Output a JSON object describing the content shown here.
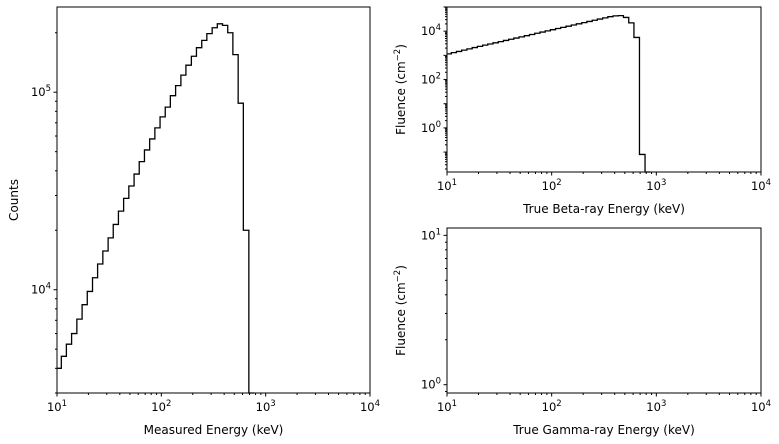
{
  "chart_data": [
    {
      "type": "line",
      "xlabel": "Measured Energy (keV)",
      "ylabel": "Counts",
      "xscale": "log",
      "yscale": "log",
      "xlim": [
        10,
        10000
      ],
      "ylim": [
        3000,
        270000
      ],
      "x_ticks": [
        {
          "v": 10,
          "base": "10",
          "exp": "1"
        },
        {
          "v": 100,
          "base": "10",
          "exp": "2"
        },
        {
          "v": 1000,
          "base": "10",
          "exp": "3"
        },
        {
          "v": 10000,
          "base": "10",
          "exp": "4"
        }
      ],
      "y_ticks": [
        {
          "v": 10000,
          "base": "10",
          "exp": "4"
        },
        {
          "v": 100000,
          "base": "10",
          "exp": "5"
        }
      ],
      "series": [
        {
          "x": [
            10,
            11,
            12.3,
            13.8,
            15.5,
            17.4,
            19.5,
            21.9,
            24.5,
            27.5,
            30.9,
            34.6,
            38.8,
            43.5,
            48.8,
            54.8,
            61.4,
            68.9,
            77.3,
            86.7,
            97.2,
            109,
            122,
            137,
            154,
            172,
            194,
            217,
            244,
            273,
            307,
            344,
            386,
            433,
            485,
            545,
            611,
            690
          ],
          "y": [
            4000,
            4600,
            5300,
            6000,
            7100,
            8400,
            9800,
            11500,
            13500,
            15700,
            18300,
            21400,
            25000,
            29000,
            33500,
            38500,
            44500,
            51000,
            58000,
            66000,
            75000,
            84000,
            96000,
            108000,
            122000,
            137000,
            152000,
            168000,
            183000,
            198000,
            212000,
            222000,
            218000,
            200000,
            155000,
            88000,
            20000,
            3000
          ]
        }
      ]
    },
    {
      "type": "line",
      "xlabel": "True Beta-ray Energy (keV)",
      "ylabel": "Fluence (cm<sup>-2</sup>)",
      "ylabel_main": "Fluence (cm",
      "ylabel_sup": "−2",
      "ylabel_end": ")",
      "xscale": "log",
      "yscale": "log",
      "xlim": [
        10,
        10000
      ],
      "ylim": [
        0.015,
        100000
      ],
      "x_ticks": [
        {
          "v": 10,
          "base": "10",
          "exp": "1"
        },
        {
          "v": 100,
          "base": "10",
          "exp": "2"
        },
        {
          "v": 1000,
          "base": "10",
          "exp": "3"
        },
        {
          "v": 10000,
          "base": "10",
          "exp": "4"
        }
      ],
      "y_ticks": [
        {
          "v": 1,
          "base": "10",
          "exp": "0"
        },
        {
          "v": 100,
          "base": "10",
          "exp": "2"
        },
        {
          "v": 10000,
          "base": "10",
          "exp": "4"
        }
      ],
      "series": [
        {
          "x": [
            10,
            11,
            12.3,
            13.8,
            15.5,
            17.4,
            19.5,
            21.9,
            24.5,
            27.5,
            30.9,
            34.6,
            38.8,
            43.5,
            48.8,
            54.8,
            61.4,
            68.9,
            77.3,
            86.7,
            97.2,
            109,
            122,
            137,
            154,
            172,
            194,
            217,
            244,
            273,
            307,
            344,
            386,
            433,
            485,
            545,
            611,
            690,
            780
          ],
          "y": [
            1150,
            1300,
            1450,
            1650,
            1850,
            2100,
            2350,
            2650,
            2950,
            3300,
            3700,
            4150,
            4650,
            5200,
            5800,
            6500,
            7300,
            8200,
            9200,
            10300,
            11500,
            12900,
            14400,
            16100,
            18000,
            20200,
            22600,
            25300,
            28300,
            31700,
            35500,
            39700,
            43000,
            44000,
            37000,
            22000,
            5500,
            0.08,
            0.015
          ]
        }
      ]
    },
    {
      "type": "line",
      "xlabel": "True Gamma-ray Energy (keV)",
      "ylabel_main": "Fluence (cm",
      "ylabel_sup": "−2",
      "ylabel_end": ")",
      "xscale": "log",
      "yscale": "log",
      "xlim": [
        10,
        10000
      ],
      "ylim": [
        0.88,
        11.2
      ],
      "x_ticks": [
        {
          "v": 10,
          "base": "10",
          "exp": "1"
        },
        {
          "v": 100,
          "base": "10",
          "exp": "2"
        },
        {
          "v": 1000,
          "base": "10",
          "exp": "3"
        },
        {
          "v": 10000,
          "base": "10",
          "exp": "4"
        }
      ],
      "y_ticks": [
        {
          "v": 1,
          "base": "10",
          "exp": "0"
        },
        {
          "v": 10,
          "base": "10",
          "exp": "1"
        }
      ],
      "series": []
    }
  ]
}
